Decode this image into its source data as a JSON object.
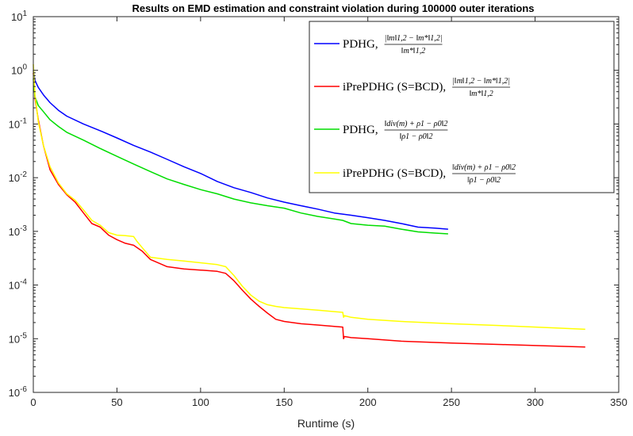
{
  "chart_data": {
    "type": "line",
    "title": "Results on EMD estimation and constraint violation during 100000 outer iterations",
    "xlabel": "Runtime (s)",
    "ylabel": "",
    "xlim": [
      0,
      350
    ],
    "ylim": [
      1e-06,
      10
    ],
    "yscale": "log",
    "grid": false,
    "legend_position": "top-right",
    "x_ticks": [
      "0",
      "50",
      "100",
      "150",
      "200",
      "250",
      "300",
      "350"
    ],
    "y_ticks": [
      {
        "base": "10",
        "exp": "-6"
      },
      {
        "base": "10",
        "exp": "-5"
      },
      {
        "base": "10",
        "exp": "-4"
      },
      {
        "base": "10",
        "exp": "-3"
      },
      {
        "base": "10",
        "exp": "-2"
      },
      {
        "base": "10",
        "exp": "-1"
      },
      {
        "base": "10",
        "exp": "0"
      },
      {
        "base": "10",
        "exp": "1"
      }
    ],
    "series": [
      {
        "name": "PDHG",
        "legend_formula_num": "|‖m‖1,2 − ‖m*‖1,2|",
        "legend_formula_den": "‖m*‖1,2",
        "color": "#0000ff",
        "x": [
          0,
          1,
          3,
          6,
          10,
          15,
          20,
          30,
          40,
          50,
          60,
          70,
          80,
          90,
          100,
          110,
          120,
          130,
          140,
          150,
          160,
          170,
          180,
          190,
          200,
          210,
          220,
          230,
          240,
          248
        ],
        "y": [
          1.0,
          0.65,
          0.48,
          0.35,
          0.25,
          0.18,
          0.14,
          0.1,
          0.075,
          0.055,
          0.04,
          0.03,
          0.022,
          0.016,
          0.012,
          0.0085,
          0.0065,
          0.0053,
          0.0042,
          0.0035,
          0.003,
          0.0026,
          0.0022,
          0.002,
          0.0018,
          0.0016,
          0.0014,
          0.0012,
          0.00115,
          0.0011
        ]
      },
      {
        "name": "iPrePDHG (S=BCD)",
        "legend_formula_num": "|‖m‖1,2 − ‖m*‖1,2|",
        "legend_formula_den": "‖m*‖1,2",
        "color": "#ff0000",
        "x": [
          0,
          1,
          3,
          6,
          10,
          15,
          20,
          25,
          30,
          35,
          40,
          45,
          50,
          55,
          60,
          65,
          70,
          80,
          90,
          100,
          110,
          115,
          120,
          125,
          130,
          135,
          140,
          142,
          145,
          150,
          160,
          170,
          180,
          185,
          185.5,
          186,
          190,
          200,
          220,
          250,
          280,
          310,
          330
        ],
        "y": [
          0.9,
          0.3,
          0.12,
          0.04,
          0.014,
          0.0075,
          0.0048,
          0.0035,
          0.0022,
          0.0014,
          0.0012,
          0.00085,
          0.0007,
          0.0006,
          0.00055,
          0.00043,
          0.0003,
          0.00022,
          0.0002,
          0.00019,
          0.00018,
          0.000165,
          0.00012,
          8e-05,
          5.5e-05,
          4e-05,
          3e-05,
          2.7e-05,
          2.3e-05,
          2.1e-05,
          1.9e-05,
          1.8e-05,
          1.7e-05,
          1.65e-05,
          1e-05,
          1.1e-05,
          1.05e-05,
          1e-05,
          9e-06,
          8.3e-06,
          7.8e-06,
          7.3e-06,
          7e-06
        ]
      },
      {
        "name": "PDHG",
        "legend_formula_num": "‖div(m) + ρ1 − ρ0‖2",
        "legend_formula_den": "‖ρ1 − ρ0‖2",
        "color": "#00dd00",
        "x": [
          0,
          1,
          3,
          6,
          10,
          15,
          20,
          30,
          40,
          50,
          60,
          70,
          80,
          90,
          100,
          110,
          120,
          130,
          140,
          150,
          160,
          170,
          180,
          185,
          190,
          200,
          210,
          220,
          230,
          240,
          248
        ],
        "y": [
          0.7,
          0.32,
          0.22,
          0.17,
          0.12,
          0.09,
          0.07,
          0.05,
          0.035,
          0.025,
          0.018,
          0.013,
          0.0095,
          0.0075,
          0.006,
          0.005,
          0.004,
          0.0034,
          0.003,
          0.0027,
          0.0022,
          0.0019,
          0.0017,
          0.0016,
          0.0014,
          0.0013,
          0.00125,
          0.0011,
          0.00098,
          0.00093,
          0.0009
        ]
      },
      {
        "name": "iPrePDHG (S=BCD)",
        "legend_formula_num": "‖div(m) + ρ1 − ρ0‖2",
        "legend_formula_den": "‖ρ1 − ρ0‖2",
        "color": "#ffff00",
        "x": [
          0,
          1,
          3,
          6,
          10,
          15,
          20,
          25,
          30,
          35,
          40,
          45,
          50,
          55,
          60,
          62,
          65,
          70,
          80,
          90,
          100,
          110,
          115,
          120,
          125,
          130,
          135,
          140,
          145,
          150,
          160,
          170,
          180,
          185,
          185.5,
          186,
          190,
          200,
          220,
          250,
          280,
          310,
          330
        ],
        "y": [
          1.3,
          0.35,
          0.11,
          0.04,
          0.016,
          0.008,
          0.005,
          0.0038,
          0.0025,
          0.0016,
          0.0013,
          0.00095,
          0.00085,
          0.00083,
          0.0008,
          0.00065,
          0.0005,
          0.00033,
          0.0003,
          0.00028,
          0.00026,
          0.00024,
          0.00022,
          0.00015,
          9.5e-05,
          6.5e-05,
          5e-05,
          4.3e-05,
          4e-05,
          3.8e-05,
          3.6e-05,
          3.4e-05,
          3.2e-05,
          3.1e-05,
          2.5e-05,
          2.7e-05,
          2.5e-05,
          2.3e-05,
          2.1e-05,
          1.9e-05,
          1.75e-05,
          1.6e-05,
          1.5e-05
        ]
      }
    ]
  }
}
